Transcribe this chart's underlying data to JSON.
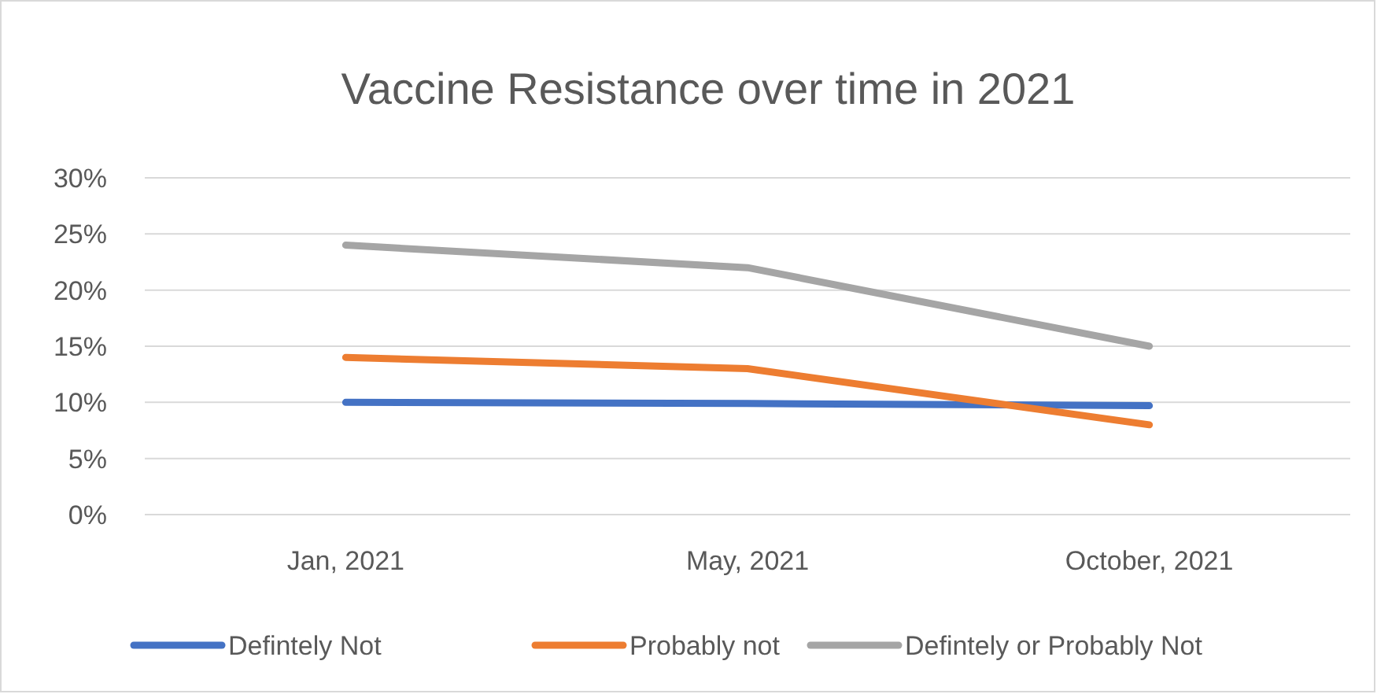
{
  "chart_data": {
    "type": "line",
    "title": "Vaccine Resistance over time in 2021",
    "categories": [
      "Jan, 2021",
      "May, 2021",
      "October, 2021"
    ],
    "series": [
      {
        "name": "Defintely Not",
        "color": "#4472c4",
        "values": [
          10,
          9.9,
          9.7
        ]
      },
      {
        "name": "Probably not",
        "color": "#ed7d31",
        "values": [
          14,
          13,
          8
        ]
      },
      {
        "name": "Defintely or Probably Not",
        "color": "#a5a5a5",
        "values": [
          24,
          22,
          15
        ]
      }
    ],
    "ylim": [
      0,
      30
    ],
    "yticks": [
      {
        "value": 0,
        "label": "0%"
      },
      {
        "value": 5,
        "label": "5%"
      },
      {
        "value": 10,
        "label": "10%"
      },
      {
        "value": 15,
        "label": "15%"
      },
      {
        "value": 20,
        "label": "20%"
      },
      {
        "value": 25,
        "label": "25%"
      },
      {
        "value": 30,
        "label": "30%"
      }
    ],
    "grid": "y",
    "legend": "bottom",
    "marker": "none",
    "line_style": "solid"
  }
}
